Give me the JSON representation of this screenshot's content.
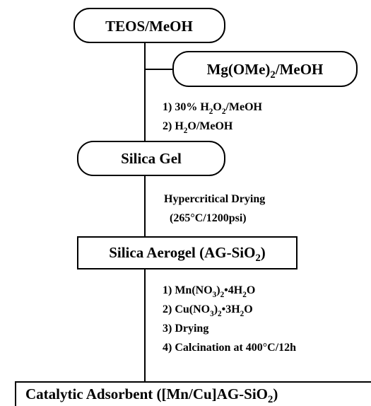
{
  "nodes": [
    {
      "label": [
        "TEOS/MeOH"
      ]
    },
    {
      "label": [
        "Mg(OMe)",
        "2",
        "/MeOH"
      ]
    },
    {
      "label": [
        "Silica Gel"
      ]
    },
    {
      "label": [
        "Silica Aerogel (AG-SiO",
        "2",
        ")"
      ]
    },
    {
      "label": [
        "Catalytic Adsorbent ([Mn/Cu]AG-SiO",
        "2",
        ")"
      ]
    }
  ],
  "steps": [
    {
      "lines": [
        [
          "1) 30% H",
          "2",
          "O",
          "2",
          "/MeOH"
        ],
        [
          "2) H",
          "2",
          "O/MeOH"
        ]
      ]
    },
    {
      "lines": [
        [
          "Hypercritical Drying"
        ],
        [
          "(265°C/1200psi)"
        ]
      ]
    },
    {
      "lines": [
        [
          "1) Mn(NO",
          "3",
          ")",
          "2",
          "•4H",
          "2",
          "O"
        ],
        [
          "2) Cu(NO",
          "3",
          ")",
          "2",
          "•3H",
          "2",
          "O"
        ],
        [
          "3) Drying"
        ],
        [
          "4) Calcination at 400°C/12h"
        ]
      ]
    }
  ]
}
